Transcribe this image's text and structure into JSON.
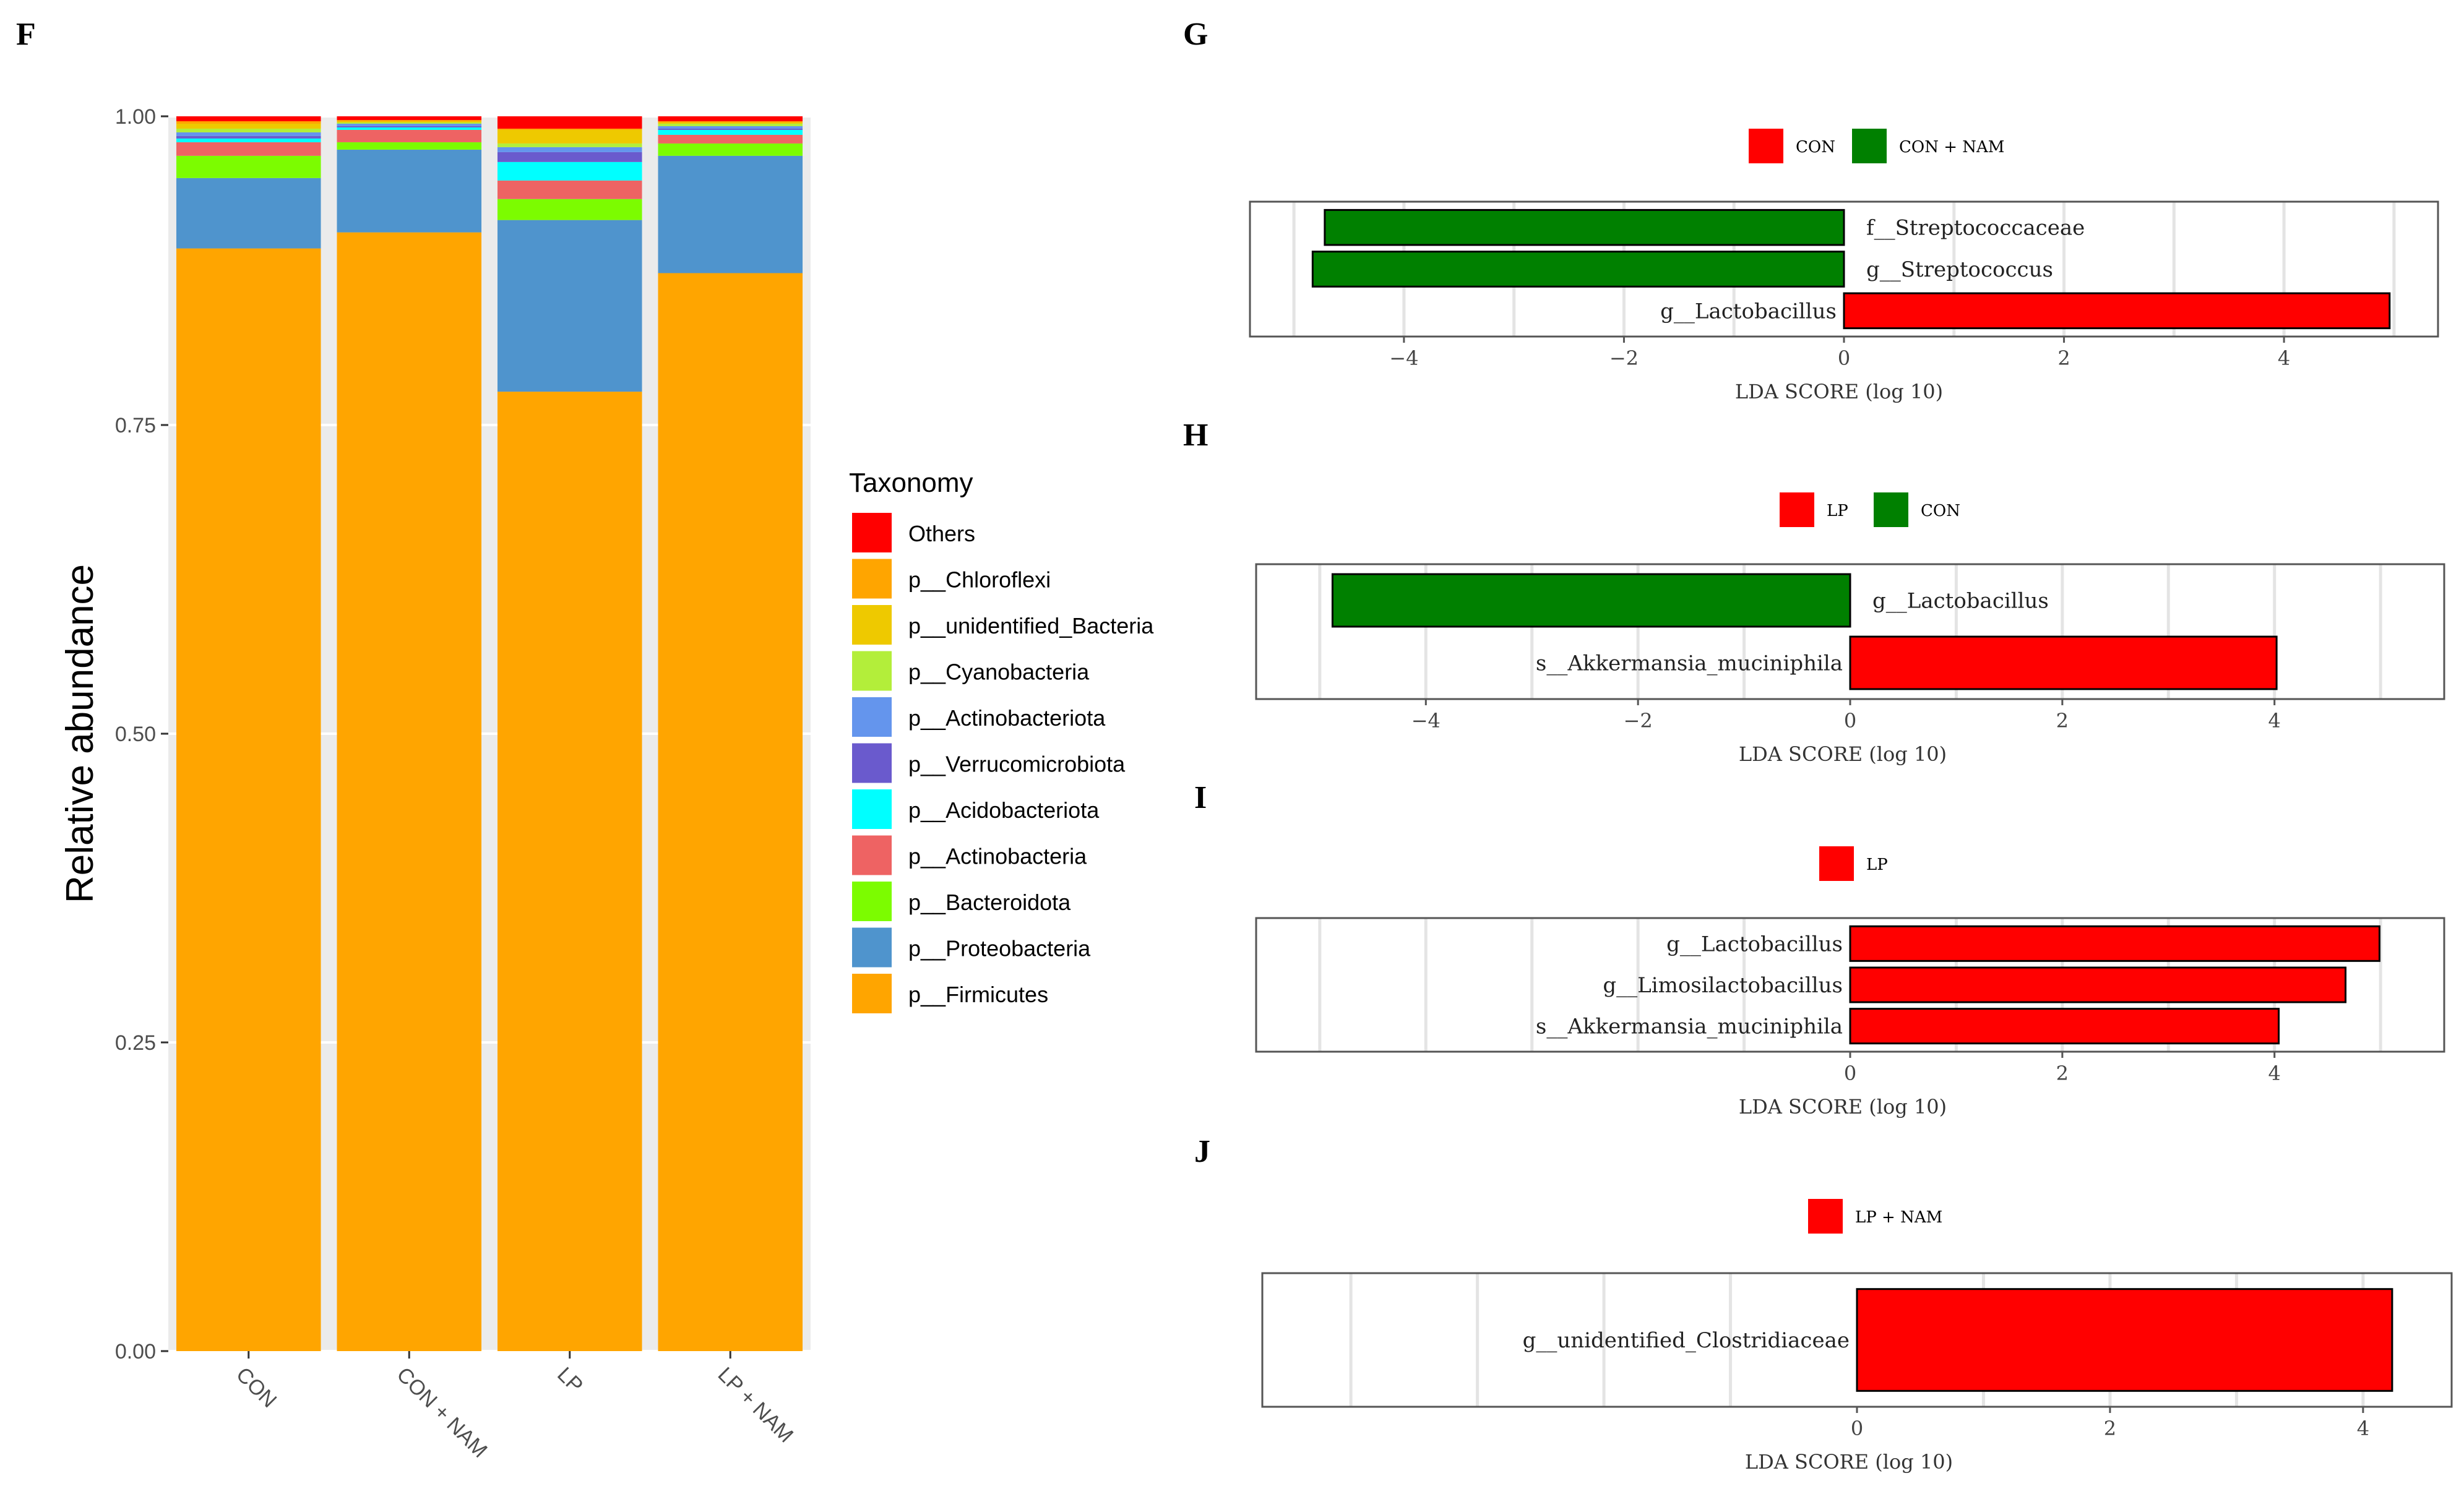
{
  "panels": {
    "F": "F",
    "G": "G",
    "H": "H",
    "I": "I",
    "J": "J"
  },
  "chart_data": [
    {
      "id": "F",
      "type": "bar",
      "stacked": true,
      "ylabel": "Relative abundance",
      "xlabel": "",
      "ylim": [
        0,
        1
      ],
      "yticks": [
        "0.00",
        "0.25",
        "0.50",
        "0.75",
        "1.00"
      ],
      "categories": [
        "CON",
        "CON + NAM",
        "LP",
        "LP + NAM"
      ],
      "legend_title": "Taxonomy",
      "legend_position": "right",
      "legend": [
        {
          "name": "Others",
          "color": "#FF0000"
        },
        {
          "name": "p__Chloroflexi",
          "color": "#FFA500"
        },
        {
          "name": "p__unidentified_Bacteria",
          "color": "#EEC900"
        },
        {
          "name": "p__Cyanobacteria",
          "color": "#B3EE3A"
        },
        {
          "name": "p__Actinobacteriota",
          "color": "#6495ED"
        },
        {
          "name": "p__Verrucomicrobiota",
          "color": "#6A5ACD"
        },
        {
          "name": "p__Acidobacteriota",
          "color": "#00FFFF"
        },
        {
          "name": "p__Actinobacteria",
          "color": "#EE6363"
        },
        {
          "name": "p__Bacteroidota",
          "color": "#7CFC00"
        },
        {
          "name": "p__Proteobacteria",
          "color": "#4F94CD"
        },
        {
          "name": "p__Firmicutes",
          "color": "#FFA500"
        }
      ],
      "series": [
        {
          "name": "p__Firmicutes",
          "values": [
            0.893,
            0.906,
            0.777,
            0.873
          ]
        },
        {
          "name": "p__Proteobacteria",
          "values": [
            0.057,
            0.067,
            0.139,
            0.095
          ]
        },
        {
          "name": "p__Bacteroidota",
          "values": [
            0.018,
            0.006,
            0.017,
            0.01
          ]
        },
        {
          "name": "p__Actinobacteria",
          "values": [
            0.011,
            0.01,
            0.015,
            0.007
          ]
        },
        {
          "name": "p__Acidobacteriota",
          "values": [
            0.003,
            0.002,
            0.015,
            0.004
          ]
        },
        {
          "name": "p__Verrucomicrobiota",
          "values": [
            0.002,
            0.001,
            0.008,
            0.001
          ]
        },
        {
          "name": "p__Actinobacteriota",
          "values": [
            0.003,
            0.002,
            0.004,
            0.002
          ]
        },
        {
          "name": "p__Cyanobacteria",
          "values": [
            0.003,
            0.001,
            0.003,
            0.002
          ]
        },
        {
          "name": "p__unidentified_Bacteria",
          "values": [
            0.004,
            0.001,
            0.011,
            0.001
          ]
        },
        {
          "name": "p__Chloroflexi",
          "values": [
            0.002,
            0.001,
            0.001,
            0.001
          ]
        },
        {
          "name": "Others",
          "values": [
            0.004,
            0.003,
            0.01,
            0.004
          ]
        }
      ]
    },
    {
      "id": "G",
      "type": "bar",
      "orientation": "horizontal",
      "xlabel": "LDA SCORE (log 10)",
      "xlim": [
        -5.4,
        5.4
      ],
      "xticks": [
        -4,
        -2,
        0,
        2,
        4
      ],
      "xtick_labels": [
        "−4",
        "−2",
        "0",
        "2",
        "4"
      ],
      "legend": [
        {
          "name": "CON",
          "color": "#FF0000"
        },
        {
          "name": "CON + NAM",
          "color": "#008000"
        }
      ],
      "bars": [
        {
          "label": "f__Streptococcaceae",
          "value": -4.72,
          "color": "#008000"
        },
        {
          "label": "g__Streptococcus",
          "value": -4.83,
          "color": "#008000"
        },
        {
          "label": "g__Lactobacillus",
          "value": 4.96,
          "color": "#FF0000"
        }
      ]
    },
    {
      "id": "H",
      "type": "bar",
      "orientation": "horizontal",
      "xlabel": "LDA SCORE (log 10)",
      "xlim": [
        -5.6,
        5.6
      ],
      "xticks": [
        -4,
        -2,
        0,
        2,
        4
      ],
      "xtick_labels": [
        "−4",
        "−2",
        "0",
        "2",
        "4"
      ],
      "legend": [
        {
          "name": "LP",
          "color": "#FF0000"
        },
        {
          "name": "CON",
          "color": "#008000"
        }
      ],
      "bars": [
        {
          "label": "g__Lactobacillus",
          "value": -4.88,
          "color": "#008000"
        },
        {
          "label": "s__Akkermansia_muciniphila",
          "value": 4.02,
          "color": "#FF0000"
        }
      ]
    },
    {
      "id": "I",
      "type": "bar",
      "orientation": "horizontal",
      "xlabel": "LDA SCORE (log 10)",
      "xlim": [
        -5.6,
        5.6
      ],
      "xticks": [
        0,
        2,
        4
      ],
      "xtick_labels": [
        "0",
        "2",
        "4"
      ],
      "legend": [
        {
          "name": "LP",
          "color": "#FF0000"
        }
      ],
      "bars": [
        {
          "label": "g__Lactobacillus",
          "value": 4.99,
          "color": "#FF0000"
        },
        {
          "label": "g__Limosilactobacillus",
          "value": 4.67,
          "color": "#FF0000"
        },
        {
          "label": "s__Akkermansia_muciniphila",
          "value": 4.04,
          "color": "#FF0000"
        }
      ]
    },
    {
      "id": "J",
      "type": "bar",
      "orientation": "horizontal",
      "xlabel": "LDA SCORE (log 10)",
      "xlim": [
        -4.7,
        4.7
      ],
      "xticks": [
        0,
        2,
        4
      ],
      "xtick_labels": [
        "0",
        "2",
        "4"
      ],
      "legend": [
        {
          "name": "LP + NAM",
          "color": "#FF0000"
        }
      ],
      "bars": [
        {
          "label": "g__unidentified_Clostridiaceae",
          "value": 4.23,
          "color": "#FF0000"
        }
      ]
    }
  ]
}
